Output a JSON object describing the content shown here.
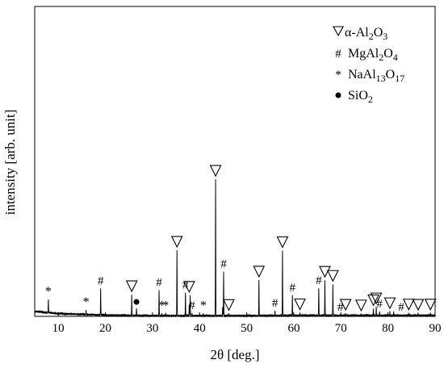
{
  "chart_data": {
    "type": "line",
    "title": "",
    "xlabel": "2θ [deg.]",
    "ylabel": "intensity [arb. unit]",
    "xlim": [
      5,
      90
    ],
    "ylim": [
      0,
      100
    ],
    "xticks": [
      10,
      20,
      30,
      40,
      50,
      60,
      70,
      80,
      90
    ],
    "xtick_labels": [
      "10",
      "20",
      "30",
      "40",
      "50",
      "60",
      "70",
      "80",
      "90"
    ],
    "grid": false,
    "legend_position": "top-right",
    "series": [
      {
        "name": "",
        "color": "#000000",
        "baseline": [
          [
            5,
            1.6
          ],
          [
            10,
            0.9
          ],
          [
            20,
            0.4
          ],
          [
            30,
            0.2
          ],
          [
            40,
            0.2
          ],
          [
            50,
            0.2
          ],
          [
            60,
            0.3
          ],
          [
            70,
            0.3
          ],
          [
            80,
            0.3
          ],
          [
            90,
            0.3
          ]
        ],
        "peaks": [
          [
            7.9,
            4.3
          ],
          [
            15.9,
            1.3
          ],
          [
            19.0,
            8.6
          ],
          [
            25.6,
            6.6
          ],
          [
            26.6,
            2.4
          ],
          [
            31.4,
            8.1
          ],
          [
            32.0,
            0.6
          ],
          [
            32.8,
            0.6
          ],
          [
            35.2,
            21.1
          ],
          [
            37.0,
            7.6
          ],
          [
            37.8,
            3.5
          ],
          [
            38.0,
            6.6
          ],
          [
            38.4,
            0.8
          ],
          [
            40.8,
            0.7
          ],
          [
            43.4,
            44.1
          ],
          [
            44.9,
            2.8
          ],
          [
            45.1,
            14.1
          ],
          [
            46.2,
            0.6
          ],
          [
            52.6,
            11.6
          ],
          [
            56.0,
            1.4
          ],
          [
            57.6,
            21.0
          ],
          [
            59.7,
            6.5
          ],
          [
            61.3,
            0.8
          ],
          [
            65.3,
            8.8
          ],
          [
            66.6,
            11.5
          ],
          [
            68.3,
            10.0
          ],
          [
            71.0,
            0.6
          ],
          [
            74.3,
            0.5
          ],
          [
            76.9,
            2.2
          ],
          [
            77.5,
            2.8
          ],
          [
            78.2,
            1.3
          ],
          [
            80.4,
            1.2
          ],
          [
            81.2,
            1.0
          ],
          [
            84.4,
            0.7
          ],
          [
            86.4,
            0.6
          ],
          [
            89.0,
            0.7
          ]
        ]
      }
    ],
    "phases": [
      {
        "marker": "▽",
        "label": "α-Al₂O₃",
        "label_base": "α-Al",
        "label_sub1": "2",
        "label_mid": "O",
        "label_sub2": "3",
        "peak_positions": [
          25.6,
          35.2,
          37.8,
          43.4,
          46.2,
          52.6,
          57.6,
          61.3,
          66.6,
          68.3,
          71.0,
          74.3,
          76.9,
          77.5,
          80.4,
          84.4,
          86.4,
          89.0
        ]
      },
      {
        "marker": "#",
        "label": "MgAl₂O₄",
        "label_base": "MgAl",
        "label_sub1": "2",
        "label_mid": "O",
        "label_sub2": "4",
        "peak_positions": [
          19.0,
          31.4,
          37.0,
          38.4,
          45.1,
          56.0,
          59.7,
          65.3,
          69.9,
          78.2,
          82.8
        ]
      },
      {
        "marker": "*",
        "label": "NaAl₁₃O₁₇",
        "label_base": "NaAl",
        "label_sub1": "13",
        "label_mid": "O",
        "label_sub2": "17",
        "peak_positions": [
          7.9,
          15.9,
          32.0,
          32.8,
          40.8
        ]
      },
      {
        "marker": "●",
        "label": "SiO₂",
        "label_base": "SiO",
        "label_sub1": "2",
        "label_mid": "",
        "label_sub2": "",
        "peak_positions": [
          26.6
        ]
      }
    ]
  }
}
